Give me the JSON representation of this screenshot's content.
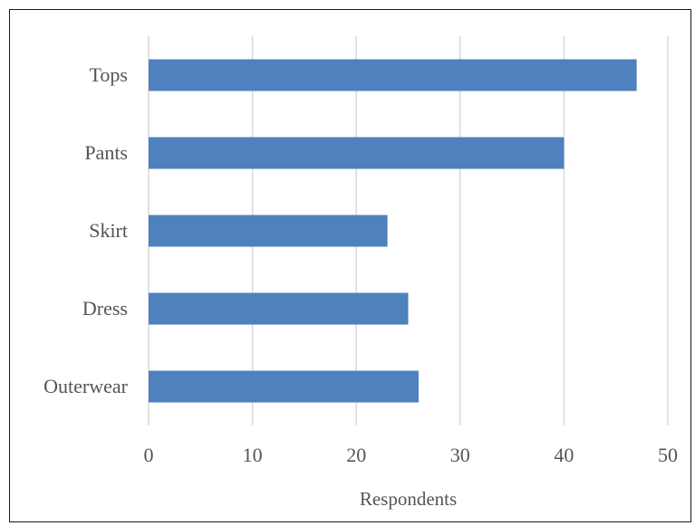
{
  "chart_data": {
    "type": "bar",
    "orientation": "horizontal",
    "categories": [
      "Tops",
      "Pants",
      "Skirt",
      "Dress",
      "Outerwear"
    ],
    "values": [
      47,
      40,
      23,
      25,
      26
    ],
    "xlabel": "Respondents",
    "ylabel": "",
    "title": "",
    "xlim": [
      0,
      50
    ],
    "xticks": [
      0,
      10,
      20,
      30,
      40,
      50
    ],
    "grid": "vertical",
    "legend": "none",
    "bar_color": "#4e81bd",
    "grid_color": "#d9d9d9"
  }
}
